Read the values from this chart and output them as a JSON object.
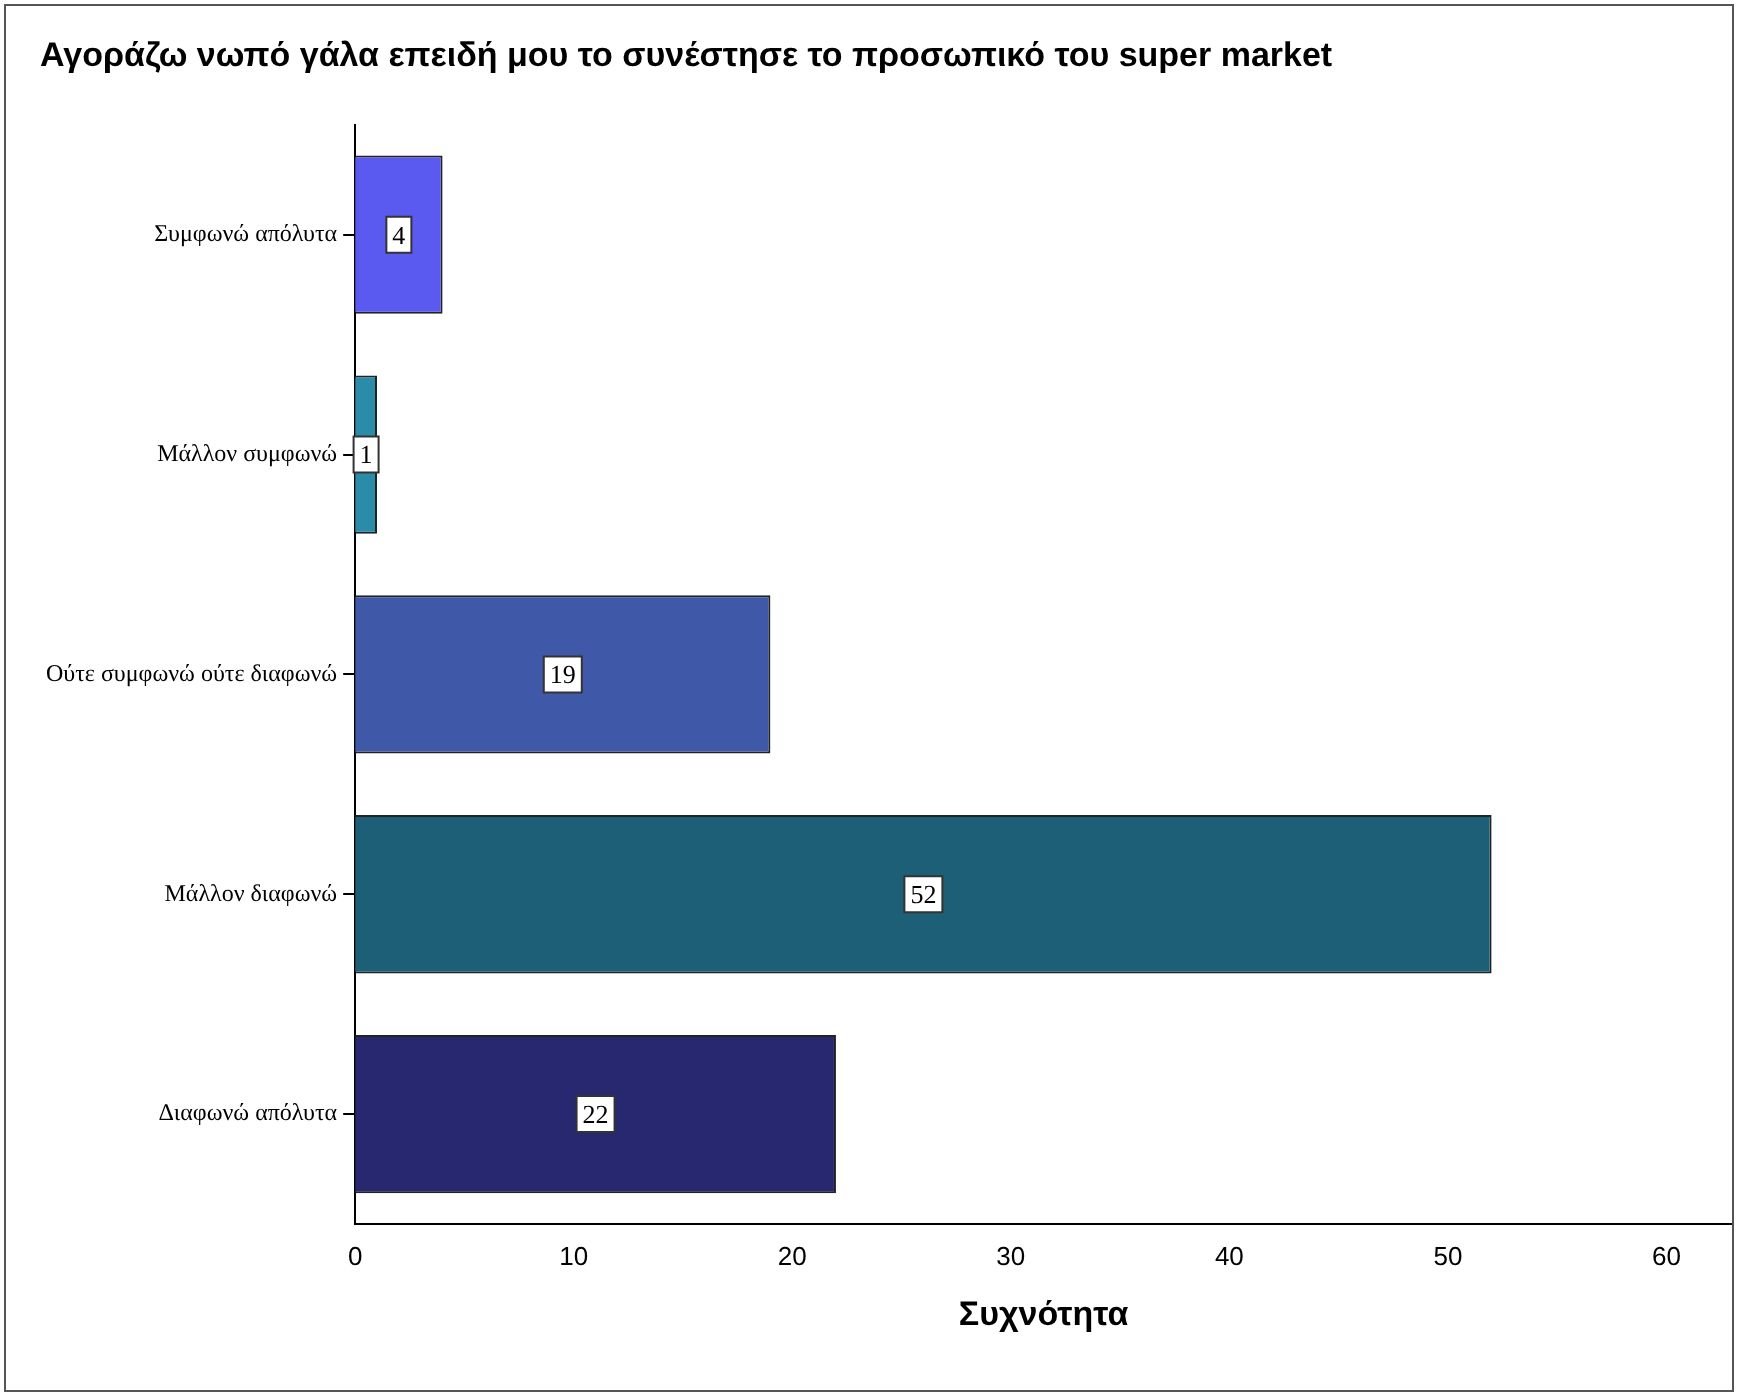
{
  "chart_data": {
    "type": "bar",
    "orientation": "horizontal",
    "title": "Αγοράζω νωπό γάλα επειδή μου το συνέστησε το προσωπικό του super market",
    "xlabel": "Συχνότητα",
    "categories": [
      "Συμφωνώ απόλυτα",
      "Μάλλον συμφωνώ",
      "Ούτε συμφωνώ ούτε διαφωνώ",
      "Μάλλον διαφωνώ",
      "Διαφωνώ απόλυτα"
    ],
    "values": [
      4,
      1,
      19,
      52,
      22
    ],
    "colors": [
      "#5a5af0",
      "#2a8ca8",
      "#4058a8",
      "#1e5f78",
      "#282870"
    ],
    "xlim": [
      0,
      63
    ],
    "xticks": [
      0,
      10,
      20,
      30,
      40,
      50,
      60
    ],
    "grid": false,
    "legend": false,
    "data_labels": true
  }
}
